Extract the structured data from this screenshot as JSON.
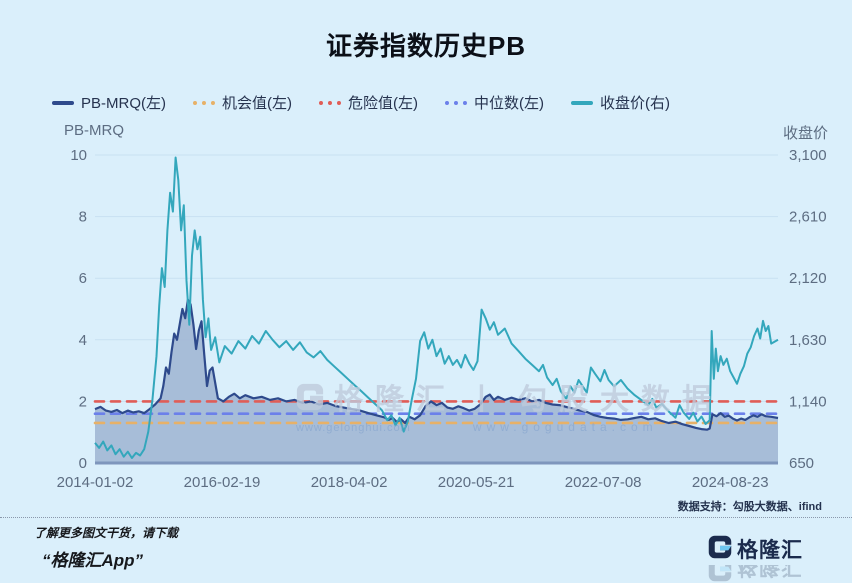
{
  "title": "证券指数历史PB",
  "legend": [
    {
      "label": "PB-MRQ(左)",
      "color": "#2e4a8c",
      "style": "solid"
    },
    {
      "label": "机会值(左)",
      "color": "#e7b168",
      "style": "dotted"
    },
    {
      "label": "危险值(左)",
      "color": "#e05d57",
      "style": "dotted"
    },
    {
      "label": "中位数(左)",
      "color": "#6b80ea",
      "style": "dotted"
    },
    {
      "label": "收盘价(右)",
      "color": "#33a7bc",
      "style": "solid"
    }
  ],
  "left_axis": {
    "title": "PB-MRQ"
  },
  "right_axis": {
    "title": "收盘价"
  },
  "x_axis": {
    "labels": [
      "2014-01-02",
      "2016-02-19",
      "2018-04-02",
      "2020-05-21",
      "2022-07-08",
      "2024-08-23"
    ],
    "step_fraction": 0.186
  },
  "colors": {
    "bg": "#daeffb",
    "grid": "#c8e1f2",
    "axis_text": "#5d6d82",
    "legend_text": "#26334f",
    "axis_line": "#7e96bc",
    "brand_navy": "#1b2b4d",
    "brand_blue": "#6ec6ef",
    "wm": "rgba(190,203,220,0.8)",
    "wm_url": "rgba(130,162,205,0.6)"
  },
  "chart_data": {
    "type": "line",
    "title": "证券指数历史PB",
    "left_lim": [
      0,
      10
    ],
    "right_lim": [
      650,
      3100
    ],
    "left_ticks": [
      0,
      2,
      4,
      6,
      8,
      10
    ],
    "right_tick_labels": [
      "650",
      "1,140",
      "1,630",
      "2,120",
      "2,610",
      "3,100"
    ],
    "grid": true,
    "legend_position": "top",
    "reference_lines": [
      {
        "name": "危险值",
        "value": 2.0,
        "color": "#e05d57"
      },
      {
        "name": "中位数",
        "value": 1.6,
        "color": "#6b80ea"
      },
      {
        "name": "机会值",
        "value": 1.3,
        "color": "#e7b168"
      }
    ],
    "series": [
      {
        "name": "PB-MRQ",
        "axis": "left",
        "color": "#2e4a8c",
        "fill": "#a4b9d6",
        "points": [
          [
            0,
            1.75
          ],
          [
            0.008,
            1.82
          ],
          [
            0.016,
            1.7
          ],
          [
            0.024,
            1.66
          ],
          [
            0.032,
            1.72
          ],
          [
            0.04,
            1.62
          ],
          [
            0.048,
            1.7
          ],
          [
            0.056,
            1.64
          ],
          [
            0.064,
            1.68
          ],
          [
            0.072,
            1.62
          ],
          [
            0.08,
            1.75
          ],
          [
            0.088,
            1.9
          ],
          [
            0.096,
            2.1
          ],
          [
            0.1,
            2.5
          ],
          [
            0.104,
            3.1
          ],
          [
            0.108,
            2.9
          ],
          [
            0.112,
            3.6
          ],
          [
            0.116,
            4.2
          ],
          [
            0.12,
            4.0
          ],
          [
            0.124,
            4.5
          ],
          [
            0.128,
            5.0
          ],
          [
            0.132,
            4.7
          ],
          [
            0.136,
            5.3
          ],
          [
            0.14,
            5.15
          ],
          [
            0.144,
            4.5
          ],
          [
            0.148,
            3.7
          ],
          [
            0.152,
            4.3
          ],
          [
            0.156,
            4.6
          ],
          [
            0.16,
            3.5
          ],
          [
            0.164,
            2.5
          ],
          [
            0.168,
            3.0
          ],
          [
            0.172,
            3.1
          ],
          [
            0.176,
            2.6
          ],
          [
            0.18,
            2.1
          ],
          [
            0.188,
            2.0
          ],
          [
            0.196,
            2.15
          ],
          [
            0.204,
            2.25
          ],
          [
            0.212,
            2.1
          ],
          [
            0.22,
            2.2
          ],
          [
            0.232,
            2.1
          ],
          [
            0.244,
            2.15
          ],
          [
            0.256,
            2.05
          ],
          [
            0.268,
            2.1
          ],
          [
            0.28,
            2.0
          ],
          [
            0.292,
            2.05
          ],
          [
            0.304,
            1.95
          ],
          [
            0.316,
            2.0
          ],
          [
            0.328,
            1.9
          ],
          [
            0.34,
            1.95
          ],
          [
            0.352,
            1.85
          ],
          [
            0.364,
            1.8
          ],
          [
            0.376,
            1.75
          ],
          [
            0.388,
            1.7
          ],
          [
            0.4,
            1.62
          ],
          [
            0.412,
            1.55
          ],
          [
            0.424,
            1.48
          ],
          [
            0.43,
            1.4
          ],
          [
            0.436,
            1.46
          ],
          [
            0.442,
            1.33
          ],
          [
            0.448,
            1.42
          ],
          [
            0.454,
            1.3
          ],
          [
            0.46,
            1.5
          ],
          [
            0.468,
            1.42
          ],
          [
            0.476,
            1.55
          ],
          [
            0.484,
            1.85
          ],
          [
            0.492,
            2.0
          ],
          [
            0.5,
            1.88
          ],
          [
            0.508,
            1.95
          ],
          [
            0.516,
            1.8
          ],
          [
            0.524,
            1.76
          ],
          [
            0.532,
            1.84
          ],
          [
            0.54,
            1.78
          ],
          [
            0.548,
            1.7
          ],
          [
            0.556,
            1.76
          ],
          [
            0.564,
            1.9
          ],
          [
            0.572,
            2.15
          ],
          [
            0.578,
            2.22
          ],
          [
            0.584,
            2.05
          ],
          [
            0.59,
            2.15
          ],
          [
            0.6,
            2.05
          ],
          [
            0.61,
            2.12
          ],
          [
            0.62,
            2.05
          ],
          [
            0.63,
            2.1
          ],
          [
            0.64,
            2.0
          ],
          [
            0.65,
            2.05
          ],
          [
            0.66,
            1.95
          ],
          [
            0.67,
            1.9
          ],
          [
            0.68,
            1.88
          ],
          [
            0.69,
            1.82
          ],
          [
            0.7,
            1.76
          ],
          [
            0.71,
            1.7
          ],
          [
            0.72,
            1.66
          ],
          [
            0.73,
            1.56
          ],
          [
            0.74,
            1.5
          ],
          [
            0.75,
            1.46
          ],
          [
            0.76,
            1.44
          ],
          [
            0.77,
            1.4
          ],
          [
            0.78,
            1.42
          ],
          [
            0.79,
            1.46
          ],
          [
            0.8,
            1.5
          ],
          [
            0.81,
            1.42
          ],
          [
            0.82,
            1.45
          ],
          [
            0.83,
            1.36
          ],
          [
            0.84,
            1.3
          ],
          [
            0.85,
            1.34
          ],
          [
            0.86,
            1.26
          ],
          [
            0.87,
            1.2
          ],
          [
            0.88,
            1.14
          ],
          [
            0.888,
            1.1
          ],
          [
            0.896,
            1.08
          ],
          [
            0.9,
            1.12
          ],
          [
            0.904,
            1.58
          ],
          [
            0.91,
            1.52
          ],
          [
            0.916,
            1.62
          ],
          [
            0.922,
            1.5
          ],
          [
            0.928,
            1.54
          ],
          [
            0.934,
            1.44
          ],
          [
            0.94,
            1.38
          ],
          [
            0.946,
            1.44
          ],
          [
            0.952,
            1.4
          ],
          [
            0.958,
            1.48
          ],
          [
            0.964,
            1.55
          ],
          [
            0.97,
            1.5
          ],
          [
            0.976,
            1.58
          ],
          [
            0.982,
            1.52
          ],
          [
            0.99,
            1.5
          ],
          [
            1,
            1.46
          ]
        ]
      },
      {
        "name": "收盘价",
        "axis": "right",
        "color": "#33a7bc",
        "points": [
          [
            0,
            810
          ],
          [
            0.006,
            770
          ],
          [
            0.012,
            820
          ],
          [
            0.018,
            750
          ],
          [
            0.024,
            790
          ],
          [
            0.03,
            720
          ],
          [
            0.036,
            760
          ],
          [
            0.042,
            700
          ],
          [
            0.048,
            740
          ],
          [
            0.054,
            690
          ],
          [
            0.06,
            730
          ],
          [
            0.066,
            710
          ],
          [
            0.072,
            760
          ],
          [
            0.078,
            900
          ],
          [
            0.084,
            1150
          ],
          [
            0.09,
            1500
          ],
          [
            0.094,
            1900
          ],
          [
            0.098,
            2200
          ],
          [
            0.102,
            2050
          ],
          [
            0.106,
            2500
          ],
          [
            0.11,
            2800
          ],
          [
            0.114,
            2650
          ],
          [
            0.118,
            3080
          ],
          [
            0.122,
            2900
          ],
          [
            0.126,
            2500
          ],
          [
            0.13,
            2700
          ],
          [
            0.134,
            2100
          ],
          [
            0.138,
            1750
          ],
          [
            0.142,
            2300
          ],
          [
            0.146,
            2500
          ],
          [
            0.15,
            2350
          ],
          [
            0.154,
            2450
          ],
          [
            0.158,
            1950
          ],
          [
            0.162,
            1650
          ],
          [
            0.166,
            1800
          ],
          [
            0.17,
            1550
          ],
          [
            0.176,
            1650
          ],
          [
            0.182,
            1450
          ],
          [
            0.19,
            1580
          ],
          [
            0.2,
            1520
          ],
          [
            0.21,
            1620
          ],
          [
            0.22,
            1560
          ],
          [
            0.23,
            1660
          ],
          [
            0.24,
            1600
          ],
          [
            0.25,
            1700
          ],
          [
            0.26,
            1630
          ],
          [
            0.27,
            1570
          ],
          [
            0.28,
            1620
          ],
          [
            0.29,
            1550
          ],
          [
            0.3,
            1610
          ],
          [
            0.31,
            1530
          ],
          [
            0.32,
            1490
          ],
          [
            0.33,
            1540
          ],
          [
            0.34,
            1470
          ],
          [
            0.35,
            1420
          ],
          [
            0.36,
            1370
          ],
          [
            0.37,
            1320
          ],
          [
            0.38,
            1270
          ],
          [
            0.39,
            1220
          ],
          [
            0.4,
            1170
          ],
          [
            0.41,
            1120
          ],
          [
            0.42,
            1070
          ],
          [
            0.428,
            990
          ],
          [
            0.434,
            1030
          ],
          [
            0.44,
            950
          ],
          [
            0.446,
            1010
          ],
          [
            0.452,
            900
          ],
          [
            0.458,
            980
          ],
          [
            0.464,
            1160
          ],
          [
            0.47,
            1320
          ],
          [
            0.476,
            1620
          ],
          [
            0.482,
            1690
          ],
          [
            0.488,
            1560
          ],
          [
            0.494,
            1630
          ],
          [
            0.5,
            1500
          ],
          [
            0.506,
            1560
          ],
          [
            0.512,
            1440
          ],
          [
            0.518,
            1500
          ],
          [
            0.524,
            1430
          ],
          [
            0.53,
            1470
          ],
          [
            0.536,
            1410
          ],
          [
            0.542,
            1510
          ],
          [
            0.548,
            1440
          ],
          [
            0.554,
            1390
          ],
          [
            0.56,
            1460
          ],
          [
            0.566,
            1870
          ],
          [
            0.572,
            1800
          ],
          [
            0.578,
            1710
          ],
          [
            0.584,
            1770
          ],
          [
            0.59,
            1670
          ],
          [
            0.6,
            1720
          ],
          [
            0.61,
            1600
          ],
          [
            0.62,
            1540
          ],
          [
            0.63,
            1480
          ],
          [
            0.64,
            1430
          ],
          [
            0.65,
            1380
          ],
          [
            0.656,
            1430
          ],
          [
            0.662,
            1330
          ],
          [
            0.67,
            1270
          ],
          [
            0.676,
            1320
          ],
          [
            0.682,
            1220
          ],
          [
            0.69,
            1160
          ],
          [
            0.696,
            1260
          ],
          [
            0.702,
            1210
          ],
          [
            0.708,
            1310
          ],
          [
            0.714,
            1260
          ],
          [
            0.72,
            1210
          ],
          [
            0.726,
            1410
          ],
          [
            0.732,
            1360
          ],
          [
            0.74,
            1300
          ],
          [
            0.746,
            1390
          ],
          [
            0.752,
            1310
          ],
          [
            0.76,
            1260
          ],
          [
            0.77,
            1310
          ],
          [
            0.78,
            1240
          ],
          [
            0.79,
            1190
          ],
          [
            0.8,
            1150
          ],
          [
            0.81,
            1110
          ],
          [
            0.816,
            1160
          ],
          [
            0.822,
            1090
          ],
          [
            0.83,
            1120
          ],
          [
            0.84,
            1060
          ],
          [
            0.85,
            1010
          ],
          [
            0.856,
            1110
          ],
          [
            0.862,
            1050
          ],
          [
            0.87,
            1000
          ],
          [
            0.876,
            1050
          ],
          [
            0.882,
            980
          ],
          [
            0.888,
            1020
          ],
          [
            0.894,
            960
          ],
          [
            0.9,
            990
          ],
          [
            0.903,
            1700
          ],
          [
            0.906,
            1320
          ],
          [
            0.909,
            1560
          ],
          [
            0.912,
            1380
          ],
          [
            0.916,
            1500
          ],
          [
            0.92,
            1430
          ],
          [
            0.925,
            1480
          ],
          [
            0.93,
            1380
          ],
          [
            0.935,
            1330
          ],
          [
            0.94,
            1280
          ],
          [
            0.945,
            1360
          ],
          [
            0.95,
            1420
          ],
          [
            0.955,
            1520
          ],
          [
            0.96,
            1570
          ],
          [
            0.965,
            1660
          ],
          [
            0.97,
            1720
          ],
          [
            0.974,
            1640
          ],
          [
            0.978,
            1780
          ],
          [
            0.982,
            1700
          ],
          [
            0.986,
            1740
          ],
          [
            0.99,
            1600
          ],
          [
            1,
            1630
          ]
        ]
      }
    ]
  },
  "watermark": {
    "main_left": "格隆汇",
    "separator": "丨",
    "main_right": "勾股大数据",
    "url_left": "www.gelonghui.com",
    "url_right": "www.gogudata.com"
  },
  "source_note": "数据支持：勾股大数据、ifind",
  "footer": {
    "promo_line1": "了解更多图文干货，请下载",
    "promo_line2": "“格隆汇App”",
    "brand_name": "格隆汇"
  }
}
